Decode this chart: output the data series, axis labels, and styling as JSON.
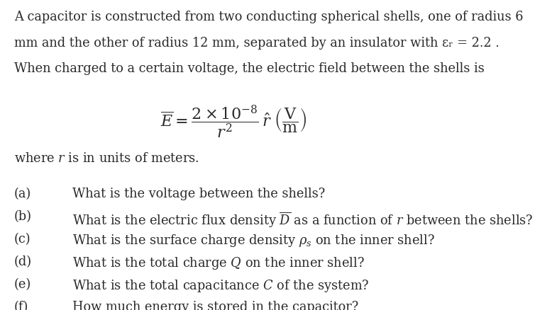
{
  "background_color": "#ffffff",
  "text_color": "#2b2b2b",
  "font_size_body": 12.8,
  "font_size_eq": 16,
  "title_lines": [
    "A capacitor is constructed from two conducting spherical shells, one of radius 6",
    "mm and the other of radius 12 mm, separated by an insulator with εᵣ = 2.2 .",
    "When charged to a certain voltage, the electric field between the shells is"
  ]
}
